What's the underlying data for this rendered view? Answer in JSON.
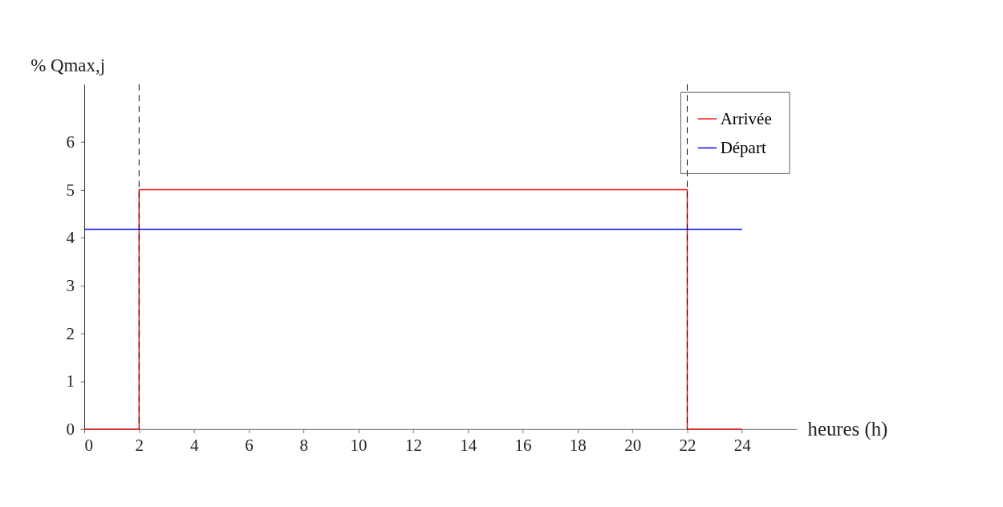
{
  "chart_data": {
    "type": "line",
    "xlabel": "heures (h)",
    "ylabel": "% Qmax,j",
    "xlim": [
      0,
      26
    ],
    "ylim": [
      0,
      7.2
    ],
    "xticks": [
      0,
      2,
      4,
      6,
      8,
      10,
      12,
      14,
      16,
      18,
      20,
      22,
      24
    ],
    "yticks": [
      0,
      1,
      2,
      3,
      4,
      5,
      6
    ],
    "grid": false,
    "legend": "top right",
    "line_style": "solid",
    "marker": "none",
    "series": [
      {
        "name": "Arrivée",
        "color": "#ff0000",
        "type": "step",
        "x": [
          0,
          2,
          22,
          24
        ],
        "values": [
          0,
          5,
          0,
          0
        ]
      },
      {
        "name": "Départ",
        "color": "#0000ff",
        "type": "line",
        "x": [
          0,
          24
        ],
        "values": [
          4.17,
          4.17
        ]
      }
    ],
    "ref_lines": [
      {
        "axis": "x",
        "value": 2,
        "color": "#000000",
        "line_style": "dashed"
      },
      {
        "axis": "x",
        "value": 22,
        "color": "#000000",
        "line_style": "dashed"
      }
    ]
  }
}
